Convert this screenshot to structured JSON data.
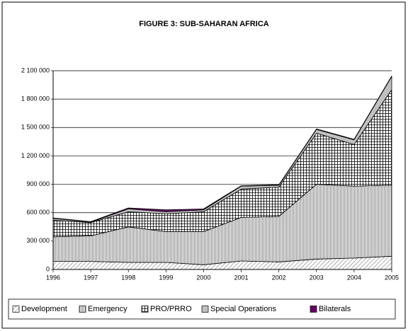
{
  "chart_data": {
    "type": "stacked_area",
    "title": "FIGURE 3: SUB-SAHARAN AFRICA",
    "x": [
      1996,
      1997,
      1998,
      1999,
      2000,
      2001,
      2002,
      2003,
      2004,
      2005
    ],
    "xlim": [
      1996,
      2005
    ],
    "xticks": [
      1996,
      1997,
      1998,
      1999,
      2000,
      2001,
      2002,
      2003,
      2004,
      2005
    ],
    "ylim": [
      0,
      2100000
    ],
    "yticks": [
      0,
      {
        "value": 300000,
        "label": "300 000"
      },
      {
        "value": 600000,
        "label": "600 000"
      },
      {
        "value": 900000,
        "label": "900 000"
      },
      {
        "value": 1200000,
        "label": "1 200 000"
      },
      {
        "value": 1500000,
        "label": "1 500 000"
      },
      {
        "value": 1800000,
        "label": "1 800 000"
      },
      {
        "value": 2100000,
        "label": "2 100 000"
      }
    ],
    "grid": true,
    "legend": "bottom",
    "series": [
      {
        "name": "Development",
        "color": "#b0b0b0",
        "pattern": "diagonal",
        "values": [
          85000,
          85000,
          75000,
          75000,
          50000,
          90000,
          80000,
          110000,
          120000,
          140000
        ]
      },
      {
        "name": "Emergency",
        "color": "#707070",
        "pattern": "vertical",
        "values": [
          260000,
          270000,
          375000,
          325000,
          350000,
          460000,
          480000,
          790000,
          760000,
          750000
        ]
      },
      {
        "name": "PRO/PRRO",
        "color": "#000000",
        "pattern": "grid",
        "values": [
          175000,
          140000,
          160000,
          190000,
          210000,
          300000,
          310000,
          540000,
          440000,
          1010000
        ]
      },
      {
        "name": "Special Operations",
        "color": "#c0c0c0",
        "pattern": "solid",
        "values": [
          20000,
          5000,
          30000,
          20000,
          20000,
          30000,
          20000,
          40000,
          50000,
          140000
        ]
      },
      {
        "name": "Bilaterals",
        "color": "#660066",
        "pattern": "solid",
        "values": [
          5000,
          5000,
          10000,
          20000,
          10000,
          5000,
          5000,
          5000,
          5000,
          5000
        ]
      }
    ]
  }
}
